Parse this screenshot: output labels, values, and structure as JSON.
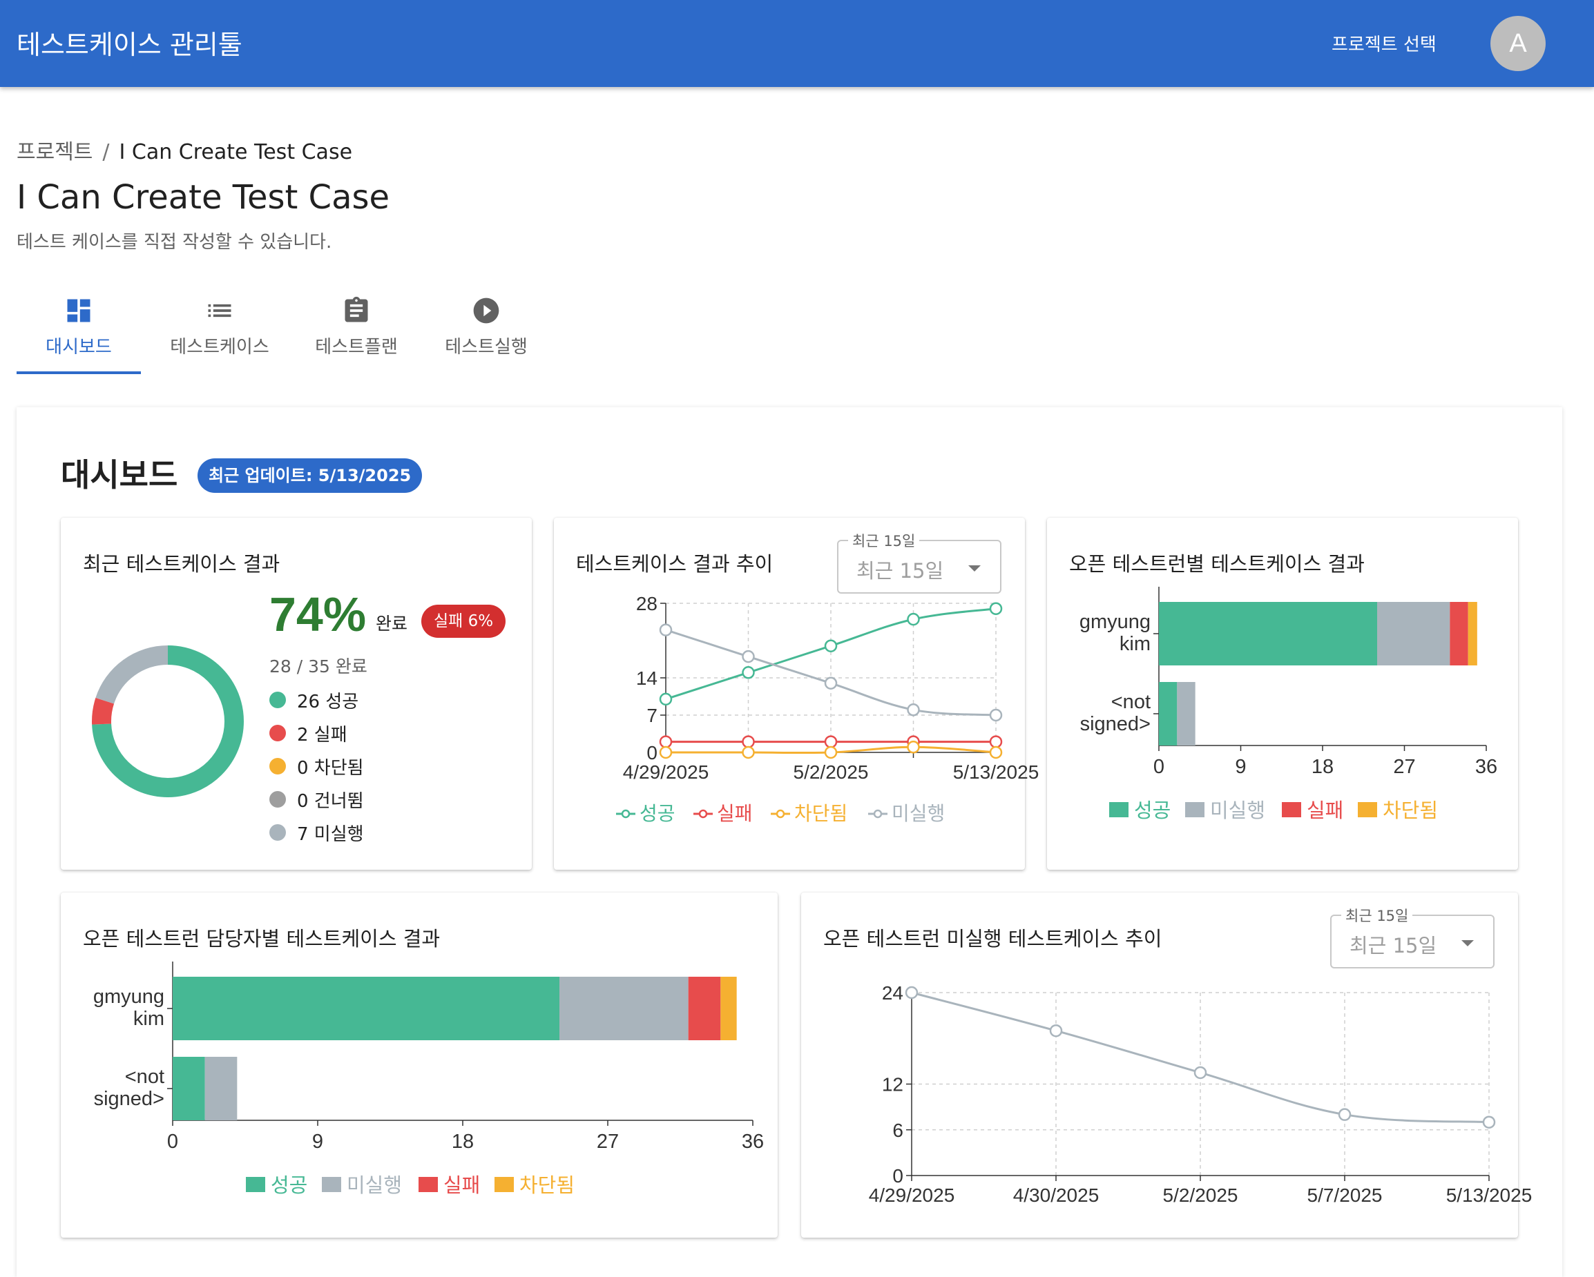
{
  "app": {
    "title": "테스트케이스 관리툴",
    "project_select": "프로젝트 선택",
    "avatar_letter": "A"
  },
  "breadcrumb": {
    "root": "프로젝트",
    "separator": "/",
    "current": "I Can Create Test Case"
  },
  "page": {
    "title": "I Can Create Test Case",
    "description": "테스트 케이스를 직접 작성할 수 있습니다."
  },
  "tabs": [
    {
      "label": "대시보드",
      "icon": "dashboard-icon",
      "active": true
    },
    {
      "label": "테스트케이스",
      "icon": "list-icon",
      "active": false
    },
    {
      "label": "테스트플랜",
      "icon": "clipboard-icon",
      "active": false
    },
    {
      "label": "테스트실행",
      "icon": "play-circle-icon",
      "active": false
    }
  ],
  "dashboard": {
    "title": "대시보드",
    "badge": "최근 업데이트: 5/13/2025"
  },
  "colors": {
    "success": "#46b894",
    "fail": "#e74c4c",
    "blocked": "#f5b031",
    "skipped": "#9e9e9e",
    "untested": "#a9b4bc",
    "primary": "#2d6ac9"
  },
  "recent_results": {
    "title": "최근 테스트케이스 결과",
    "percent": "74%",
    "done_label": "완료",
    "fail_chip": "실패 6%",
    "done_count": "28 / 35 완료",
    "legend": [
      {
        "label": "26 성공",
        "color": "#46b894"
      },
      {
        "label": "2 실패",
        "color": "#e74c4c"
      },
      {
        "label": "0 차단됨",
        "color": "#f5b031"
      },
      {
        "label": "0 건너뜀",
        "color": "#9e9e9e"
      },
      {
        "label": "7 미실행",
        "color": "#a9b4bc"
      }
    ],
    "chart_data": {
      "type": "pie",
      "labels": [
        "성공",
        "실패",
        "차단됨",
        "건너뜀",
        "미실행"
      ],
      "values": [
        26,
        2,
        0,
        0,
        7
      ]
    }
  },
  "trend_card": {
    "title": "테스트케이스 결과 추이",
    "select_label": "최근 15일",
    "select_value": "최근 15일",
    "chart_data": {
      "type": "line",
      "x": [
        "4/29/2025",
        "4/30/2025",
        "5/2/2025",
        "5/7/2025",
        "5/13/2025"
      ],
      "x_tick_labels": [
        "4/29/2025",
        "5/2/2025",
        "5/13/2025"
      ],
      "y_ticks": [
        0,
        7,
        14,
        28
      ],
      "ylim": [
        0,
        28
      ],
      "series": [
        {
          "name": "성공",
          "color": "#46b894",
          "values": [
            10,
            15,
            20,
            25,
            27
          ]
        },
        {
          "name": "실패",
          "color": "#e74c4c",
          "values": [
            2,
            2,
            2,
            2,
            2
          ]
        },
        {
          "name": "차단됨",
          "color": "#f5b031",
          "values": [
            0,
            0,
            0,
            1,
            0
          ]
        },
        {
          "name": "미실행",
          "color": "#a9b4bc",
          "values": [
            23,
            18,
            13,
            8,
            7
          ]
        }
      ],
      "legend_position": "bottom"
    }
  },
  "open_run_card": {
    "title": "오픈 테스트런별 테스트케이스 결과",
    "chart_data": {
      "type": "bar",
      "orientation": "horizontal",
      "stacked": true,
      "categories": [
        "gmyung kim",
        "<not signed>"
      ],
      "series": [
        {
          "name": "성공",
          "color": "#46b894",
          "values": [
            24,
            2
          ]
        },
        {
          "name": "미실행",
          "color": "#a9b4bc",
          "values": [
            8,
            2
          ]
        },
        {
          "name": "실패",
          "color": "#e74c4c",
          "values": [
            2,
            0
          ]
        },
        {
          "name": "차단됨",
          "color": "#f5b031",
          "values": [
            1,
            0
          ]
        }
      ],
      "x_ticks": [
        0,
        9,
        18,
        27,
        36
      ],
      "xlim": [
        0,
        36
      ],
      "legend_position": "bottom"
    }
  },
  "assignee_card": {
    "title": "오픈 테스트런 담당자별 테스트케이스 결과",
    "chart_data": {
      "type": "bar",
      "orientation": "horizontal",
      "stacked": true,
      "categories": [
        "gmyung kim",
        "<not signed>"
      ],
      "series": [
        {
          "name": "성공",
          "color": "#46b894",
          "values": [
            24,
            2
          ]
        },
        {
          "name": "미실행",
          "color": "#a9b4bc",
          "values": [
            8,
            2
          ]
        },
        {
          "name": "실패",
          "color": "#e74c4c",
          "values": [
            2,
            0
          ]
        },
        {
          "name": "차단됨",
          "color": "#f5b031",
          "values": [
            1,
            0
          ]
        }
      ],
      "x_ticks": [
        0,
        9,
        18,
        27,
        36
      ],
      "xlim": [
        0,
        36
      ],
      "legend_position": "bottom"
    }
  },
  "untested_card": {
    "title": "오픈 테스트런 미실행 테스트케이스 추이",
    "select_label": "최근 15일",
    "select_value": "최근 15일",
    "chart_data": {
      "type": "line",
      "x": [
        "4/29/2025",
        "4/30/2025",
        "5/2/2025",
        "5/7/2025",
        "5/13/2025"
      ],
      "y_ticks": [
        0,
        6,
        12,
        24
      ],
      "ylim": [
        0,
        24
      ],
      "series": [
        {
          "color": "#a9b4bc",
          "values": [
            24,
            19,
            13.5,
            8,
            7
          ]
        }
      ]
    }
  }
}
